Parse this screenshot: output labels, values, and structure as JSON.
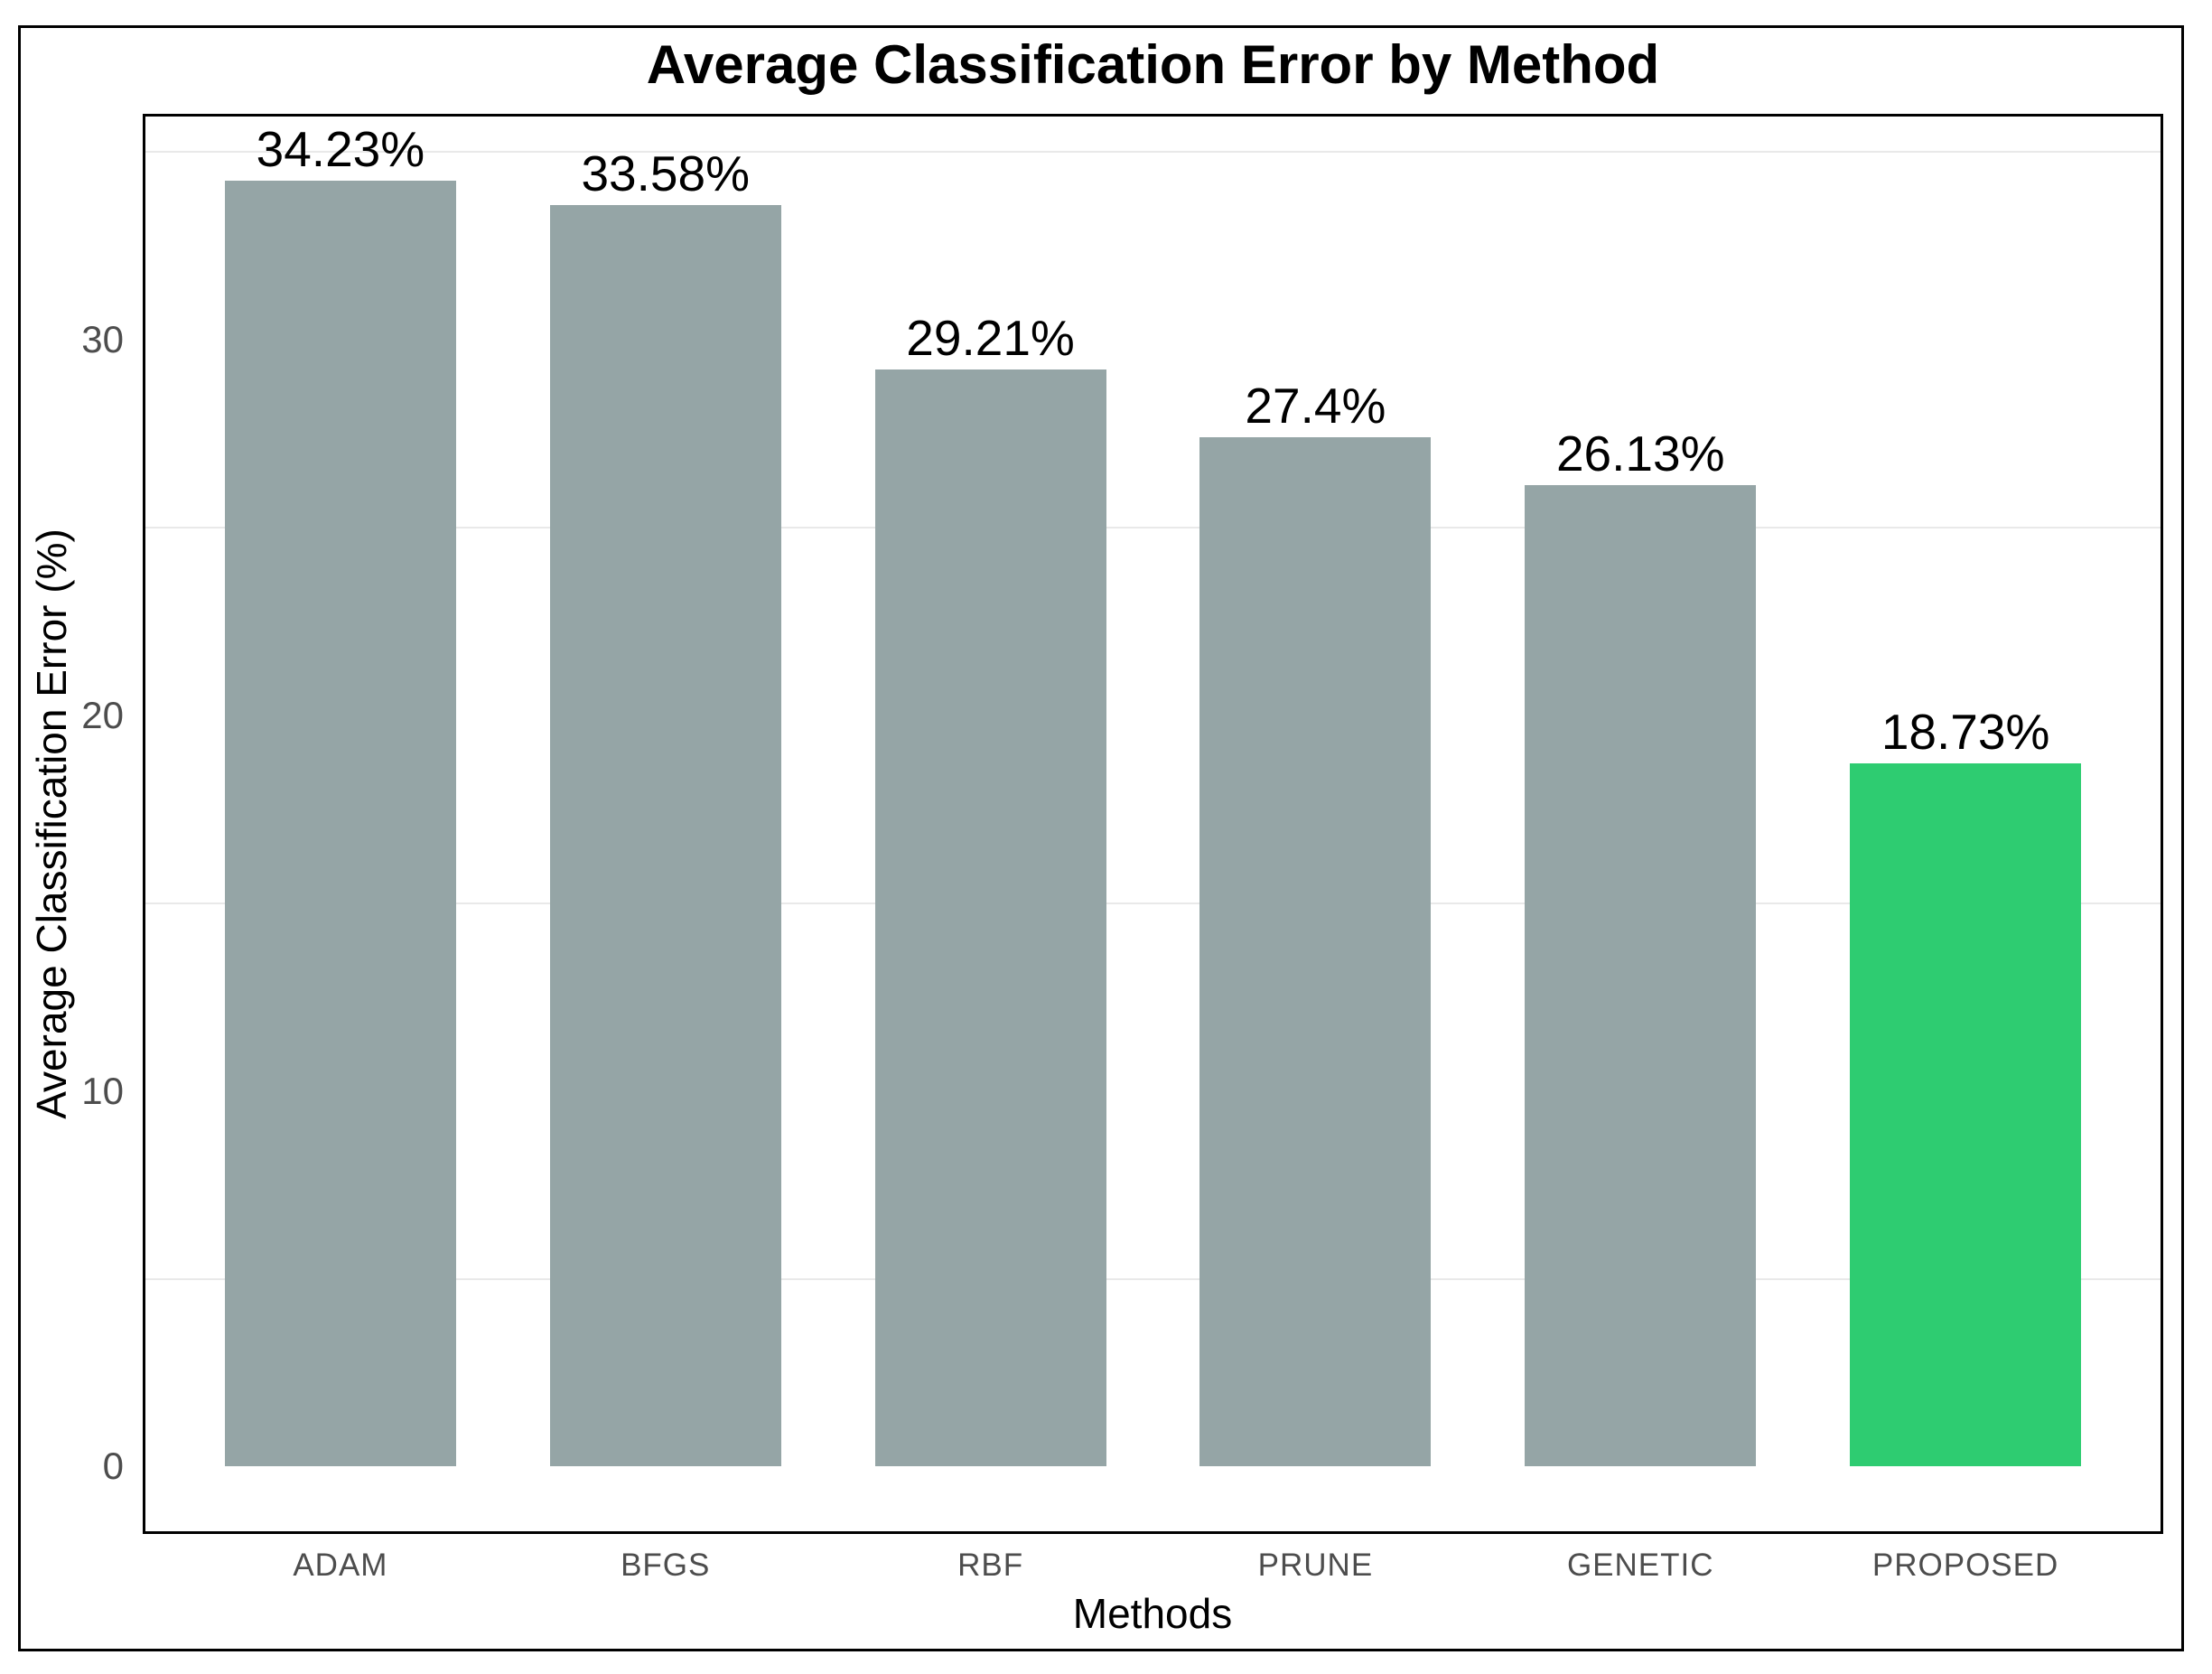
{
  "figure": {
    "title": "Average Classification Error by Method",
    "xlabel": "Methods",
    "ylabel": "Average Classification Error (%)"
  },
  "chart_data": {
    "type": "bar",
    "title": "Average Classification Error by Method",
    "xlabel": "Methods",
    "ylabel": "Average Classification Error (%)",
    "categories": [
      "ADAM",
      "BFGS",
      "RBF",
      "PRUNE",
      "GENETIC",
      "PROPOSED"
    ],
    "values": [
      34.23,
      33.58,
      29.21,
      27.4,
      26.13,
      18.73
    ],
    "value_labels": [
      "34.23%",
      "33.58%",
      "29.21%",
      "27.4%",
      "26.13%",
      "18.73%"
    ],
    "bar_colors": [
      "#95a5a6",
      "#95a5a6",
      "#95a5a6",
      "#95a5a6",
      "#95a5a6",
      "#2ecc71"
    ],
    "default_bar_color": "#95a5a6",
    "highlight_color": "#2ecc71",
    "highlighted_category": "PROPOSED",
    "yticks": [
      0,
      10,
      20,
      30
    ],
    "minor_gridlines": [
      5,
      15,
      25,
      35
    ],
    "ylim": [
      -1.72,
      35.94
    ],
    "grid": "minor-horizontal-only",
    "legend": "none"
  },
  "colors": {
    "axis_text": "#4d4d4d",
    "gridline": "#e9e9e9",
    "border": "#000000",
    "background": "#ffffff"
  }
}
